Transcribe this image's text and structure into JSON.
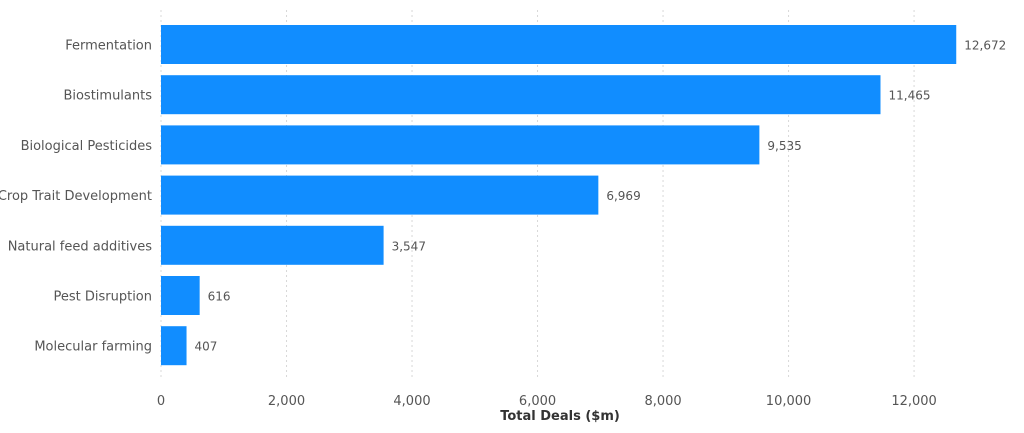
{
  "chart_data": {
    "type": "bar",
    "orientation": "horizontal",
    "categories": [
      "Fermentation",
      "Biostimulants",
      "Biological Pesticides",
      "Crop Trait Development",
      "Natural feed additives",
      "Pest Disruption",
      "Molecular farming"
    ],
    "values": [
      12672,
      11465,
      9535,
      6969,
      3547,
      616,
      407
    ],
    "data_labels": [
      "12,672",
      "11,465",
      "9,535",
      "6,969",
      "3,547",
      "616",
      "407"
    ],
    "xlabel": "Total Deals ($m)",
    "ylabel": "",
    "xlim": [
      0,
      12700
    ],
    "xticks": [
      0,
      2000,
      4000,
      6000,
      8000,
      10000,
      12000
    ],
    "xtick_labels": [
      "0",
      "2,000",
      "4,000",
      "6,000",
      "8,000",
      "10,000",
      "12,000"
    ],
    "grid": true,
    "bar_color": "#118dff"
  }
}
